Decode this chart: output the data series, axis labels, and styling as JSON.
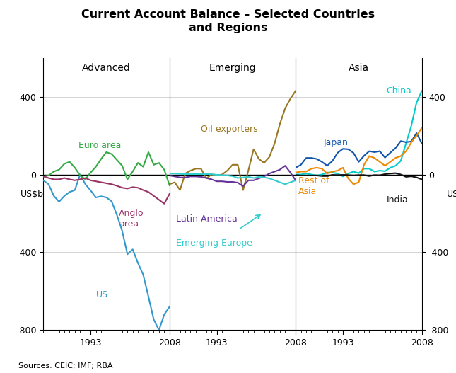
{
  "title": "Current Account Balance – Selected Countries\nand Regions",
  "ylabel_left": "US$b",
  "ylabel_right": "US$b",
  "source": "Sources: CEIC; IMF; RBA",
  "ylim": [
    -800,
    600
  ],
  "yticks": [
    -800,
    -400,
    0,
    400
  ],
  "panel_labels": [
    "Advanced",
    "Emerging",
    "Asia"
  ],
  "years_adv": [
    1984,
    1985,
    1986,
    1987,
    1988,
    1989,
    1990,
    1991,
    1992,
    1993,
    1994,
    1995,
    1996,
    1997,
    1998,
    1999,
    2000,
    2001,
    2002,
    2003,
    2004,
    2005,
    2006,
    2007,
    2008
  ],
  "US": [
    -30,
    -50,
    -110,
    -140,
    -110,
    -90,
    -80,
    0,
    -50,
    -82,
    -118,
    -112,
    -118,
    -138,
    -208,
    -290,
    -410,
    -385,
    -455,
    -515,
    -628,
    -745,
    -800,
    -720,
    -680
  ],
  "Euro_area": [
    -10,
    -5,
    15,
    25,
    55,
    65,
    35,
    -5,
    -25,
    10,
    40,
    80,
    115,
    105,
    75,
    45,
    -25,
    15,
    60,
    40,
    115,
    50,
    60,
    25,
    -55
  ],
  "Anglo_area": [
    -10,
    -18,
    -25,
    -25,
    -18,
    -25,
    -30,
    -25,
    -18,
    -30,
    -35,
    -40,
    -45,
    -50,
    -58,
    -68,
    -72,
    -65,
    -68,
    -80,
    -90,
    -110,
    -130,
    -150,
    -100
  ],
  "years_emg": [
    1984,
    1985,
    1986,
    1987,
    1988,
    1989,
    1990,
    1991,
    1992,
    1993,
    1994,
    1995,
    1996,
    1997,
    1998,
    1999,
    2000,
    2001,
    2002,
    2003,
    2004,
    2005,
    2006,
    2007,
    2008
  ],
  "Oil_exporters": [
    -50,
    -40,
    -80,
    5,
    20,
    30,
    30,
    -20,
    0,
    -5,
    0,
    20,
    50,
    50,
    -80,
    20,
    130,
    80,
    60,
    90,
    160,
    260,
    340,
    390,
    430
  ],
  "Latin_America": [
    -5,
    -10,
    -15,
    -15,
    -10,
    -10,
    -12,
    -18,
    -25,
    -35,
    -35,
    -38,
    -38,
    -42,
    -60,
    -30,
    -30,
    -20,
    -10,
    5,
    15,
    25,
    45,
    10,
    -30
  ],
  "Emerging_Europe": [
    5,
    5,
    3,
    2,
    2,
    2,
    2,
    2,
    2,
    -2,
    -3,
    -5,
    -8,
    -18,
    -15,
    -12,
    -18,
    -12,
    -15,
    -20,
    -30,
    -40,
    -50,
    -40,
    -30
  ],
  "years_asia": [
    1984,
    1985,
    1986,
    1987,
    1988,
    1989,
    1990,
    1991,
    1992,
    1993,
    1994,
    1995,
    1996,
    1997,
    1998,
    1999,
    2000,
    2001,
    2002,
    2003,
    2004,
    2005,
    2006,
    2007,
    2008
  ],
  "China": [
    0,
    0,
    5,
    0,
    -5,
    0,
    10,
    10,
    5,
    -10,
    5,
    15,
    7,
    30,
    30,
    15,
    20,
    17,
    35,
    45,
    70,
    160,
    250,
    370,
    430
  ],
  "Japan": [
    35,
    50,
    85,
    85,
    80,
    65,
    45,
    70,
    112,
    132,
    130,
    111,
    65,
    96,
    120,
    115,
    120,
    87,
    112,
    136,
    172,
    166,
    170,
    213,
    160
  ],
  "Rest_of_Asia": [
    10,
    15,
    15,
    30,
    35,
    30,
    5,
    15,
    20,
    35,
    -20,
    -50,
    -40,
    50,
    95,
    85,
    65,
    45,
    65,
    85,
    95,
    120,
    165,
    200,
    240
  ],
  "India": [
    -3,
    -5,
    -5,
    -5,
    -5,
    -8,
    -8,
    -2,
    -3,
    -2,
    -3,
    -5,
    -3,
    -3,
    -8,
    -3,
    -4,
    2,
    5,
    7,
    0,
    -12,
    -9,
    -15,
    -25
  ],
  "colors": {
    "US": "#3399cc",
    "Euro_area": "#33aa44",
    "Anglo_area": "#993366",
    "Oil_exporters": "#997722",
    "Latin_America": "#663399",
    "Emerging_Europe": "#33cccc",
    "China": "#00cccc",
    "Japan": "#1155aa",
    "Rest_of_Asia": "#ee8800",
    "India": "#111111"
  },
  "background_color": "#ffffff"
}
